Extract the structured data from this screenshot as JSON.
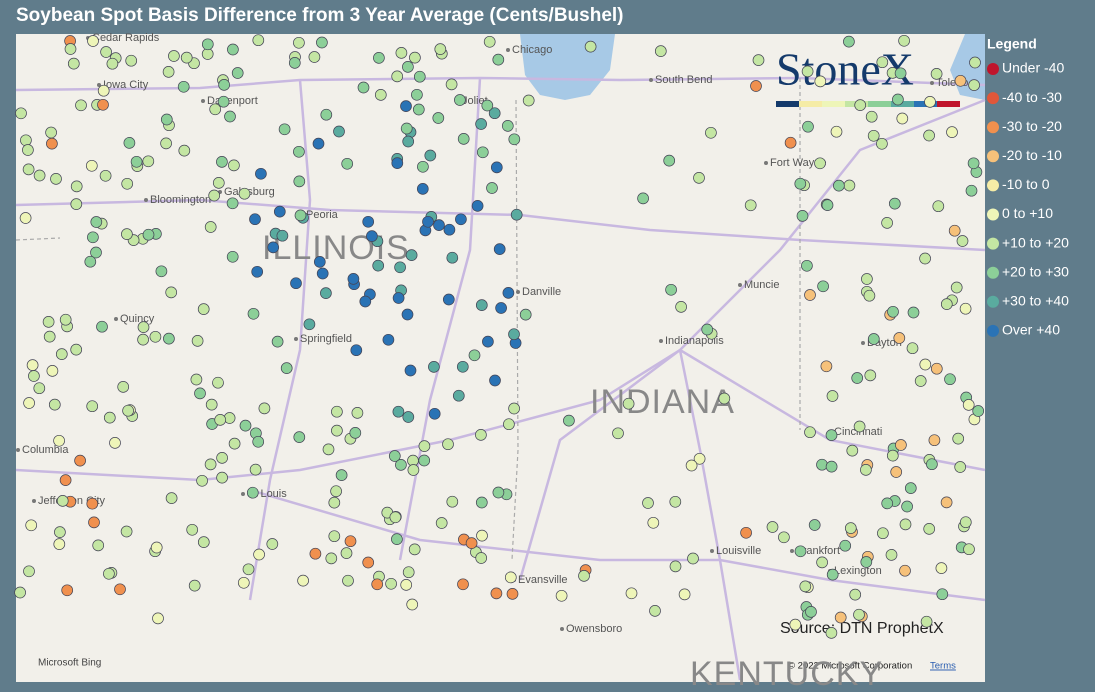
{
  "title": "Soybean Spot Basis Difference from 3 Year Average (Cents/Bushel)",
  "legend": {
    "title": "Legend",
    "items": [
      {
        "label": "Under -40",
        "color": "#c0142c"
      },
      {
        "label": "-40 to -30",
        "color": "#e0573a"
      },
      {
        "label": "-30 to -20",
        "color": "#f0904e"
      },
      {
        "label": "-20 to -10",
        "color": "#f6c17a"
      },
      {
        "label": "-10 to 0",
        "color": "#f5eca6"
      },
      {
        "label": "0 to +10",
        "color": "#eef5b8"
      },
      {
        "label": "+10 to +20",
        "color": "#c4e6a3"
      },
      {
        "label": "+20 to +30",
        "color": "#8ccf98"
      },
      {
        "label": "+30 to +40",
        "color": "#5aab9f"
      },
      {
        "label": "Over +40",
        "color": "#2a73b5"
      }
    ]
  },
  "logo": "StoneX",
  "source": "Source: DTN ProphetX",
  "map": {
    "states": [
      "ILLINOIS",
      "INDIANA",
      "KENTUCKY"
    ],
    "cities": [
      "Cedar Rapids",
      "Iowa City",
      "Davenport",
      "Chicago",
      "Joliet",
      "South Bend",
      "Toledo",
      "Galesburg",
      "Peoria",
      "Fort Wayne",
      "Bloomington",
      "Danville",
      "Muncie",
      "Quincy",
      "Springfield",
      "Indianapolis",
      "Dayton",
      "Cincinnati",
      "Columbia",
      "Jefferson City",
      "St Louis",
      "Louisville",
      "Frankfort",
      "Lexington",
      "Evansville",
      "Owensboro"
    ],
    "attribution": "Microsoft Bing",
    "copyright": "© 2022 Microsoft Corporation",
    "terms": "Terms"
  }
}
